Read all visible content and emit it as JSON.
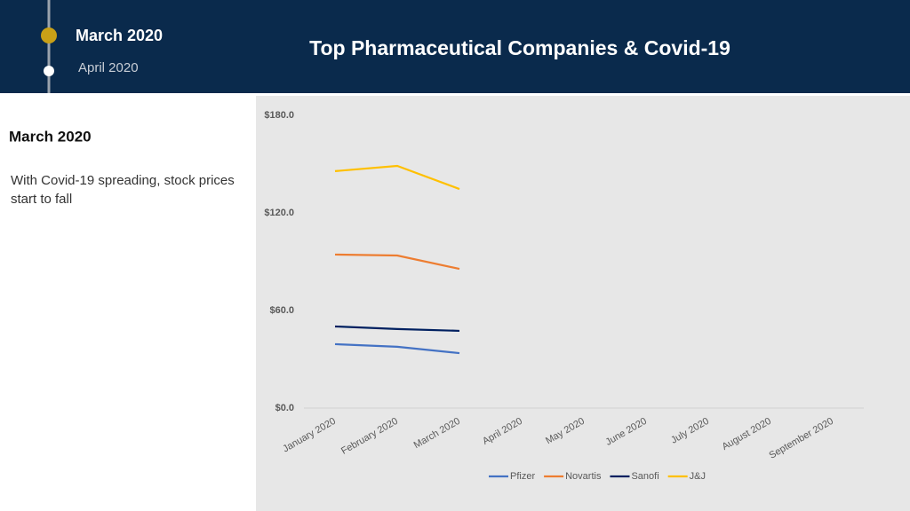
{
  "title": "Top Pharmaceutical Companies & Covid-19",
  "timeline": [
    "March 2020",
    "April 2020"
  ],
  "panel": {
    "heading": "March 2020",
    "text": "With Covid-19 spreading, stock prices start to fall"
  },
  "chart_data": {
    "type": "line",
    "categories": [
      "January 2020",
      "February 2020",
      "March 2020",
      "April 2020",
      "May 2020",
      "June 2020",
      "July 2020",
      "August 2020",
      "September 2020"
    ],
    "series": [
      {
        "name": "Pfizer",
        "color": "#4472c4",
        "values": [
          39.3,
          37.7,
          33.8,
          null,
          null,
          null,
          null,
          null,
          null
        ]
      },
      {
        "name": "Novartis",
        "color": "#ed7d31",
        "values": [
          94.4,
          93.8,
          85.6,
          null,
          null,
          null,
          null,
          null,
          null
        ]
      },
      {
        "name": "Sanofi",
        "color": "#002060",
        "values": [
          50.2,
          48.6,
          47.5,
          null,
          null,
          null,
          null,
          null,
          null
        ]
      },
      {
        "name": "J&J",
        "color": "#ffc000",
        "values": [
          145.7,
          148.9,
          134.7,
          null,
          null,
          null,
          null,
          null,
          null
        ]
      }
    ],
    "ylim": [
      0,
      180
    ],
    "yticks": [
      {
        "value": 0,
        "label": "$0.0"
      },
      {
        "value": 60,
        "label": "$60.0"
      },
      {
        "value": 120,
        "label": "$120.0"
      },
      {
        "value": 180,
        "label": "$180.0"
      }
    ],
    "legend": "bottom"
  }
}
